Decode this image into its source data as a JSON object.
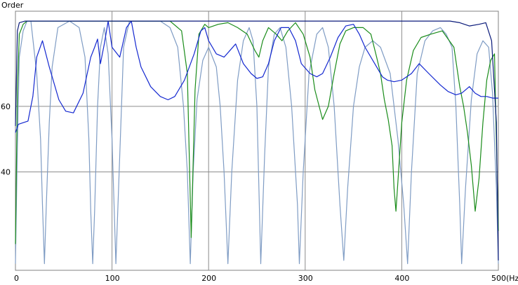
{
  "chart_data": {
    "type": "line",
    "ylabel": "Order",
    "xlabel": "(Hz)",
    "xlim": [
      0,
      500
    ],
    "ylim": [
      10,
      89
    ],
    "grid": true,
    "x_ticks": [
      0,
      100,
      200,
      300,
      400,
      500
    ],
    "x_tick_labels": [
      "0",
      "100",
      "200",
      "300",
      "400",
      "500(Hz)"
    ],
    "y_ticks": [
      40,
      60
    ],
    "y_tick_labels": [
      "40",
      "60"
    ],
    "series": [
      {
        "color": "#0a1a7a",
        "points": [
          [
            0,
            54
          ],
          [
            2,
            83
          ],
          [
            4,
            85.5
          ],
          [
            10,
            86
          ],
          [
            50,
            86
          ],
          [
            100,
            86
          ],
          [
            150,
            86
          ],
          [
            200,
            86
          ],
          [
            250,
            86
          ],
          [
            300,
            86
          ],
          [
            350,
            86
          ],
          [
            380,
            86
          ],
          [
            400,
            86
          ],
          [
            420,
            86
          ],
          [
            450,
            86
          ],
          [
            460,
            85.5
          ],
          [
            470,
            84.5
          ],
          [
            480,
            85
          ],
          [
            487,
            85.5
          ],
          [
            493,
            80
          ],
          [
            498,
            55
          ],
          [
            500,
            13
          ]
        ]
      },
      {
        "color": "#1428d0",
        "points": [
          [
            0,
            52
          ],
          [
            3,
            54.5
          ],
          [
            8,
            55
          ],
          [
            13,
            55.5
          ],
          [
            18,
            63
          ],
          [
            22,
            75
          ],
          [
            28,
            80
          ],
          [
            35,
            72
          ],
          [
            45,
            62
          ],
          [
            52,
            58.5
          ],
          [
            60,
            58
          ],
          [
            70,
            64
          ],
          [
            78,
            75
          ],
          [
            82,
            78
          ],
          [
            85,
            80.5
          ],
          [
            88,
            73
          ],
          [
            92,
            79
          ],
          [
            96,
            86
          ],
          [
            100,
            78
          ],
          [
            108,
            75
          ],
          [
            115,
            84
          ],
          [
            120,
            86
          ],
          [
            125,
            78
          ],
          [
            130,
            72
          ],
          [
            140,
            66
          ],
          [
            150,
            63
          ],
          [
            158,
            62
          ],
          [
            165,
            63
          ],
          [
            175,
            68
          ],
          [
            185,
            76
          ],
          [
            192,
            83
          ],
          [
            196,
            84
          ],
          [
            200,
            80
          ],
          [
            208,
            76
          ],
          [
            216,
            75
          ],
          [
            222,
            77
          ],
          [
            228,
            79
          ],
          [
            236,
            73
          ],
          [
            244,
            70
          ],
          [
            250,
            68.5
          ],
          [
            256,
            69
          ],
          [
            262,
            73
          ],
          [
            268,
            80
          ],
          [
            275,
            84
          ],
          [
            283,
            84
          ],
          [
            290,
            80
          ],
          [
            296,
            73
          ],
          [
            305,
            70
          ],
          [
            312,
            69
          ],
          [
            318,
            70
          ],
          [
            326,
            75
          ],
          [
            334,
            81
          ],
          [
            342,
            84.5
          ],
          [
            350,
            85
          ],
          [
            356,
            82
          ],
          [
            362,
            78
          ],
          [
            372,
            73
          ],
          [
            380,
            69
          ],
          [
            385,
            68
          ],
          [
            392,
            67.5
          ],
          [
            400,
            68
          ],
          [
            410,
            70
          ],
          [
            418,
            73
          ],
          [
            428,
            70
          ],
          [
            440,
            66.5
          ],
          [
            448,
            64.5
          ],
          [
            456,
            63.5
          ],
          [
            462,
            64
          ],
          [
            466,
            65
          ],
          [
            470,
            66
          ],
          [
            476,
            64
          ],
          [
            482,
            63
          ],
          [
            488,
            63
          ],
          [
            494,
            62.5
          ],
          [
            500,
            62.5
          ]
        ]
      },
      {
        "color": "#1a8c1a",
        "points": [
          [
            0,
            18
          ],
          [
            2,
            65
          ],
          [
            4,
            82
          ],
          [
            8,
            85
          ],
          [
            12,
            86
          ],
          [
            40,
            86
          ],
          [
            80,
            86
          ],
          [
            110,
            86
          ],
          [
            140,
            86
          ],
          [
            160,
            86
          ],
          [
            172,
            83
          ],
          [
            178,
            70
          ],
          [
            182,
            20
          ],
          [
            186,
            65
          ],
          [
            190,
            82
          ],
          [
            196,
            85
          ],
          [
            200,
            84
          ],
          [
            210,
            85
          ],
          [
            220,
            85.5
          ],
          [
            230,
            84
          ],
          [
            240,
            82
          ],
          [
            248,
            77
          ],
          [
            252,
            75
          ],
          [
            256,
            80
          ],
          [
            262,
            84
          ],
          [
            270,
            82
          ],
          [
            276,
            80
          ],
          [
            282,
            83
          ],
          [
            290,
            85.5
          ],
          [
            298,
            82
          ],
          [
            305,
            75
          ],
          [
            310,
            65
          ],
          [
            318,
            56
          ],
          [
            324,
            60
          ],
          [
            330,
            70
          ],
          [
            336,
            79
          ],
          [
            342,
            83
          ],
          [
            350,
            84
          ],
          [
            360,
            84
          ],
          [
            368,
            82
          ],
          [
            374,
            75
          ],
          [
            378,
            70
          ],
          [
            382,
            62
          ],
          [
            386,
            56
          ],
          [
            390,
            48
          ],
          [
            392,
            35
          ],
          [
            394,
            28
          ],
          [
            396,
            37
          ],
          [
            400,
            55
          ],
          [
            405,
            68
          ],
          [
            412,
            77
          ],
          [
            420,
            81
          ],
          [
            430,
            82
          ],
          [
            442,
            83
          ],
          [
            454,
            78
          ],
          [
            460,
            66
          ],
          [
            464,
            60
          ],
          [
            468,
            52
          ],
          [
            472,
            42
          ],
          [
            476,
            28
          ],
          [
            480,
            38
          ],
          [
            484,
            55
          ],
          [
            488,
            68
          ],
          [
            492,
            74
          ],
          [
            496,
            76
          ],
          [
            500,
            22
          ]
        ]
      },
      {
        "color": "#7f9cc4",
        "points": [
          [
            0,
            12
          ],
          [
            2,
            48
          ],
          [
            4,
            75
          ],
          [
            8,
            83
          ],
          [
            12,
            86
          ],
          [
            16,
            86
          ],
          [
            22,
            70
          ],
          [
            26,
            50
          ],
          [
            28,
            30
          ],
          [
            30,
            12
          ],
          [
            32,
            30
          ],
          [
            35,
            55
          ],
          [
            38,
            72
          ],
          [
            44,
            84
          ],
          [
            56,
            86
          ],
          [
            66,
            84
          ],
          [
            72,
            75
          ],
          [
            76,
            50
          ],
          [
            78,
            28
          ],
          [
            80,
            12
          ],
          [
            82,
            28
          ],
          [
            85,
            60
          ],
          [
            88,
            78
          ],
          [
            92,
            84
          ],
          [
            96,
            76
          ],
          [
            100,
            50
          ],
          [
            104,
            12
          ],
          [
            108,
            45
          ],
          [
            112,
            78
          ],
          [
            118,
            86
          ],
          [
            140,
            86
          ],
          [
            150,
            86
          ],
          [
            160,
            84
          ],
          [
            168,
            78
          ],
          [
            174,
            60
          ],
          [
            178,
            40
          ],
          [
            181,
            12
          ],
          [
            184,
            40
          ],
          [
            188,
            62
          ],
          [
            194,
            74
          ],
          [
            200,
            78
          ],
          [
            208,
            72
          ],
          [
            212,
            60
          ],
          [
            216,
            40
          ],
          [
            220,
            12
          ],
          [
            224,
            40
          ],
          [
            230,
            68
          ],
          [
            236,
            80
          ],
          [
            242,
            84
          ],
          [
            246,
            80
          ],
          [
            250,
            60
          ],
          [
            254,
            12
          ],
          [
            258,
            45
          ],
          [
            262,
            72
          ],
          [
            268,
            82
          ],
          [
            274,
            84
          ],
          [
            280,
            78
          ],
          [
            286,
            60
          ],
          [
            292,
            30
          ],
          [
            294,
            12
          ],
          [
            298,
            40
          ],
          [
            304,
            70
          ],
          [
            312,
            82
          ],
          [
            318,
            84
          ],
          [
            324,
            78
          ],
          [
            330,
            60
          ],
          [
            336,
            30
          ],
          [
            340,
            13
          ],
          [
            344,
            35
          ],
          [
            350,
            60
          ],
          [
            356,
            72
          ],
          [
            362,
            78
          ],
          [
            370,
            80
          ],
          [
            378,
            78
          ],
          [
            388,
            70
          ],
          [
            396,
            50
          ],
          [
            402,
            30
          ],
          [
            406,
            12
          ],
          [
            410,
            40
          ],
          [
            416,
            70
          ],
          [
            424,
            80
          ],
          [
            432,
            83
          ],
          [
            440,
            84
          ],
          [
            446,
            82
          ],
          [
            452,
            78
          ],
          [
            456,
            60
          ],
          [
            460,
            30
          ],
          [
            462,
            12
          ],
          [
            466,
            35
          ],
          [
            472,
            62
          ],
          [
            478,
            76
          ],
          [
            484,
            80
          ],
          [
            490,
            78
          ],
          [
            494,
            64
          ],
          [
            498,
            35
          ],
          [
            500,
            12
          ]
        ]
      }
    ]
  }
}
